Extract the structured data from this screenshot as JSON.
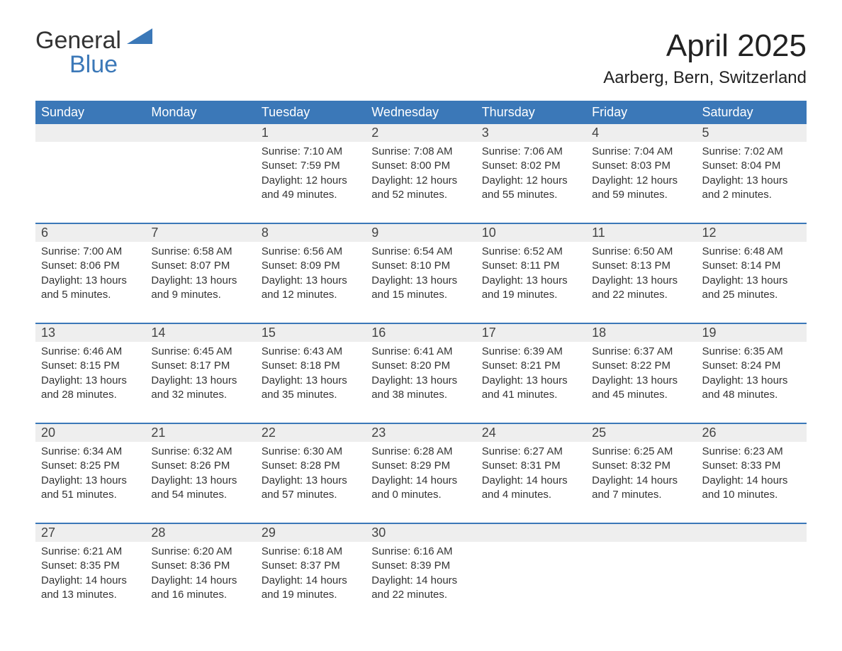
{
  "logo": {
    "line1": "General",
    "line2": "Blue"
  },
  "title": "April 2025",
  "location": "Aarberg, Bern, Switzerland",
  "colors": {
    "header_bg": "#3b78b8",
    "header_text": "#ffffff",
    "daynum_bg": "#eeeeee",
    "body_text": "#333333",
    "page_bg": "#ffffff",
    "accent": "#3b78b8"
  },
  "calendar": {
    "day_headers": [
      "Sunday",
      "Monday",
      "Tuesday",
      "Wednesday",
      "Thursday",
      "Friday",
      "Saturday"
    ],
    "weeks": [
      [
        {
          "day": "",
          "sunrise": "",
          "sunset": "",
          "daylight": ""
        },
        {
          "day": "",
          "sunrise": "",
          "sunset": "",
          "daylight": ""
        },
        {
          "day": "1",
          "sunrise": "Sunrise: 7:10 AM",
          "sunset": "Sunset: 7:59 PM",
          "daylight": "Daylight: 12 hours and 49 minutes."
        },
        {
          "day": "2",
          "sunrise": "Sunrise: 7:08 AM",
          "sunset": "Sunset: 8:00 PM",
          "daylight": "Daylight: 12 hours and 52 minutes."
        },
        {
          "day": "3",
          "sunrise": "Sunrise: 7:06 AM",
          "sunset": "Sunset: 8:02 PM",
          "daylight": "Daylight: 12 hours and 55 minutes."
        },
        {
          "day": "4",
          "sunrise": "Sunrise: 7:04 AM",
          "sunset": "Sunset: 8:03 PM",
          "daylight": "Daylight: 12 hours and 59 minutes."
        },
        {
          "day": "5",
          "sunrise": "Sunrise: 7:02 AM",
          "sunset": "Sunset: 8:04 PM",
          "daylight": "Daylight: 13 hours and 2 minutes."
        }
      ],
      [
        {
          "day": "6",
          "sunrise": "Sunrise: 7:00 AM",
          "sunset": "Sunset: 8:06 PM",
          "daylight": "Daylight: 13 hours and 5 minutes."
        },
        {
          "day": "7",
          "sunrise": "Sunrise: 6:58 AM",
          "sunset": "Sunset: 8:07 PM",
          "daylight": "Daylight: 13 hours and 9 minutes."
        },
        {
          "day": "8",
          "sunrise": "Sunrise: 6:56 AM",
          "sunset": "Sunset: 8:09 PM",
          "daylight": "Daylight: 13 hours and 12 minutes."
        },
        {
          "day": "9",
          "sunrise": "Sunrise: 6:54 AM",
          "sunset": "Sunset: 8:10 PM",
          "daylight": "Daylight: 13 hours and 15 minutes."
        },
        {
          "day": "10",
          "sunrise": "Sunrise: 6:52 AM",
          "sunset": "Sunset: 8:11 PM",
          "daylight": "Daylight: 13 hours and 19 minutes."
        },
        {
          "day": "11",
          "sunrise": "Sunrise: 6:50 AM",
          "sunset": "Sunset: 8:13 PM",
          "daylight": "Daylight: 13 hours and 22 minutes."
        },
        {
          "day": "12",
          "sunrise": "Sunrise: 6:48 AM",
          "sunset": "Sunset: 8:14 PM",
          "daylight": "Daylight: 13 hours and 25 minutes."
        }
      ],
      [
        {
          "day": "13",
          "sunrise": "Sunrise: 6:46 AM",
          "sunset": "Sunset: 8:15 PM",
          "daylight": "Daylight: 13 hours and 28 minutes."
        },
        {
          "day": "14",
          "sunrise": "Sunrise: 6:45 AM",
          "sunset": "Sunset: 8:17 PM",
          "daylight": "Daylight: 13 hours and 32 minutes."
        },
        {
          "day": "15",
          "sunrise": "Sunrise: 6:43 AM",
          "sunset": "Sunset: 8:18 PM",
          "daylight": "Daylight: 13 hours and 35 minutes."
        },
        {
          "day": "16",
          "sunrise": "Sunrise: 6:41 AM",
          "sunset": "Sunset: 8:20 PM",
          "daylight": "Daylight: 13 hours and 38 minutes."
        },
        {
          "day": "17",
          "sunrise": "Sunrise: 6:39 AM",
          "sunset": "Sunset: 8:21 PM",
          "daylight": "Daylight: 13 hours and 41 minutes."
        },
        {
          "day": "18",
          "sunrise": "Sunrise: 6:37 AM",
          "sunset": "Sunset: 8:22 PM",
          "daylight": "Daylight: 13 hours and 45 minutes."
        },
        {
          "day": "19",
          "sunrise": "Sunrise: 6:35 AM",
          "sunset": "Sunset: 8:24 PM",
          "daylight": "Daylight: 13 hours and 48 minutes."
        }
      ],
      [
        {
          "day": "20",
          "sunrise": "Sunrise: 6:34 AM",
          "sunset": "Sunset: 8:25 PM",
          "daylight": "Daylight: 13 hours and 51 minutes."
        },
        {
          "day": "21",
          "sunrise": "Sunrise: 6:32 AM",
          "sunset": "Sunset: 8:26 PM",
          "daylight": "Daylight: 13 hours and 54 minutes."
        },
        {
          "day": "22",
          "sunrise": "Sunrise: 6:30 AM",
          "sunset": "Sunset: 8:28 PM",
          "daylight": "Daylight: 13 hours and 57 minutes."
        },
        {
          "day": "23",
          "sunrise": "Sunrise: 6:28 AM",
          "sunset": "Sunset: 8:29 PM",
          "daylight": "Daylight: 14 hours and 0 minutes."
        },
        {
          "day": "24",
          "sunrise": "Sunrise: 6:27 AM",
          "sunset": "Sunset: 8:31 PM",
          "daylight": "Daylight: 14 hours and 4 minutes."
        },
        {
          "day": "25",
          "sunrise": "Sunrise: 6:25 AM",
          "sunset": "Sunset: 8:32 PM",
          "daylight": "Daylight: 14 hours and 7 minutes."
        },
        {
          "day": "26",
          "sunrise": "Sunrise: 6:23 AM",
          "sunset": "Sunset: 8:33 PM",
          "daylight": "Daylight: 14 hours and 10 minutes."
        }
      ],
      [
        {
          "day": "27",
          "sunrise": "Sunrise: 6:21 AM",
          "sunset": "Sunset: 8:35 PM",
          "daylight": "Daylight: 14 hours and 13 minutes."
        },
        {
          "day": "28",
          "sunrise": "Sunrise: 6:20 AM",
          "sunset": "Sunset: 8:36 PM",
          "daylight": "Daylight: 14 hours and 16 minutes."
        },
        {
          "day": "29",
          "sunrise": "Sunrise: 6:18 AM",
          "sunset": "Sunset: 8:37 PM",
          "daylight": "Daylight: 14 hours and 19 minutes."
        },
        {
          "day": "30",
          "sunrise": "Sunrise: 6:16 AM",
          "sunset": "Sunset: 8:39 PM",
          "daylight": "Daylight: 14 hours and 22 minutes."
        },
        {
          "day": "",
          "sunrise": "",
          "sunset": "",
          "daylight": ""
        },
        {
          "day": "",
          "sunrise": "",
          "sunset": "",
          "daylight": ""
        },
        {
          "day": "",
          "sunrise": "",
          "sunset": "",
          "daylight": ""
        }
      ]
    ]
  }
}
